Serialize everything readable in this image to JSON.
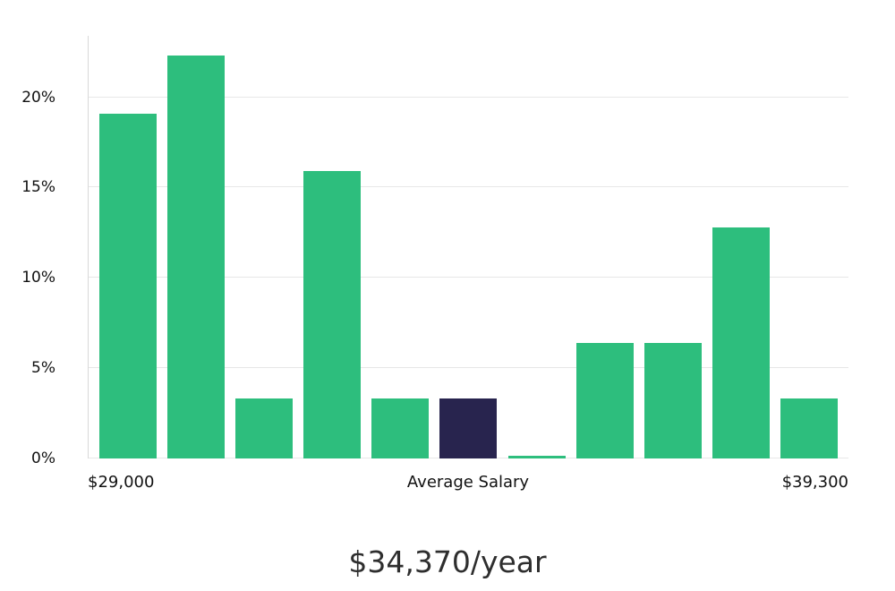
{
  "chart_data": {
    "type": "bar",
    "title": "$34,370/year",
    "x_tick_labels": [
      "$29,000",
      "Average Salary",
      "$39,300"
    ],
    "y_ticks": [
      {
        "value": 0,
        "label": "0%"
      },
      {
        "value": 5,
        "label": "5%"
      },
      {
        "value": 10,
        "label": "10%"
      },
      {
        "value": 15,
        "label": "15%"
      },
      {
        "value": 20,
        "label": "20%"
      }
    ],
    "ylabel": "",
    "xlabel": "",
    "ylim": [
      0,
      23.4
    ],
    "values": [
      19.1,
      22.3,
      3.3,
      15.9,
      3.3,
      3.3,
      0.15,
      6.4,
      6.4,
      12.8,
      3.3
    ],
    "highlight_index": 5,
    "legend": "none",
    "grid": "horizontal",
    "colors": {
      "bar": "#2dbe7d",
      "highlight_bar": "#28244e",
      "grid": "#e7e7e7",
      "axis": "#d9d9d9",
      "text": "#111111",
      "title_text": "#2e2e2e"
    }
  }
}
